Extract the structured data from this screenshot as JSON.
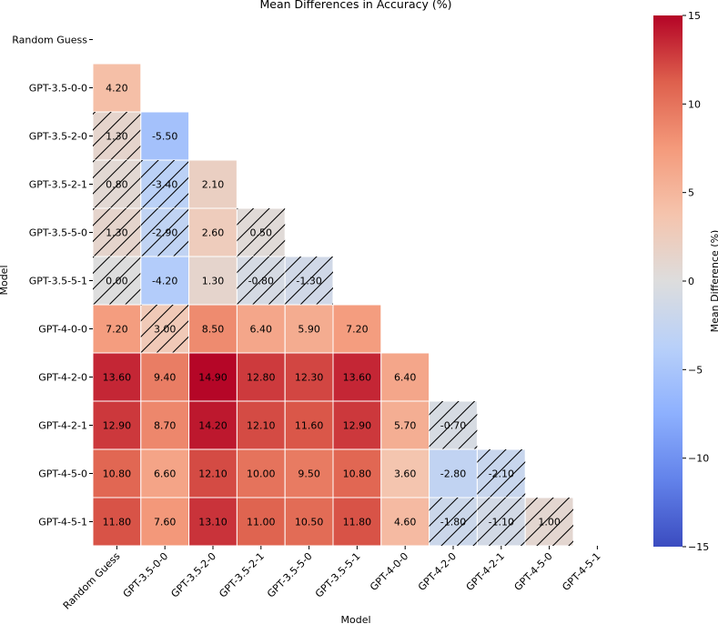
{
  "chart_data": {
    "type": "heatmap",
    "title": "Mean Differences in Accuracy (%)",
    "xlabel": "Model",
    "ylabel": "Model",
    "models": [
      "Random Guess",
      "GPT-3.5-0-0",
      "GPT-3.5-2-0",
      "GPT-3.5-2-1",
      "GPT-3.5-5-0",
      "GPT-3.5-5-1",
      "GPT-4-0-0",
      "GPT-4-2-0",
      "GPT-4-2-1",
      "GPT-4-5-0",
      "GPT-4-5-1"
    ],
    "values": [
      [],
      [
        4.2
      ],
      [
        1.3,
        -5.5
      ],
      [
        0.8,
        -3.4,
        2.1
      ],
      [
        1.3,
        -2.9,
        2.6,
        0.5
      ],
      [
        0.0,
        -4.2,
        1.3,
        -0.8,
        -1.3
      ],
      [
        7.2,
        3.0,
        8.5,
        6.4,
        5.9,
        7.2
      ],
      [
        13.6,
        9.4,
        14.9,
        12.8,
        12.3,
        13.6,
        6.4
      ],
      [
        12.9,
        8.7,
        14.2,
        12.1,
        11.6,
        12.9,
        5.7,
        -0.7
      ],
      [
        10.8,
        6.6,
        12.1,
        10.0,
        9.5,
        10.8,
        3.6,
        -2.8,
        -2.1
      ],
      [
        11.8,
        7.6,
        13.1,
        11.0,
        10.5,
        11.8,
        4.6,
        -1.8,
        -1.1,
        1.0
      ]
    ],
    "labels": [
      [],
      [
        "4.20"
      ],
      [
        "1.30",
        "-5.50"
      ],
      [
        "0.80",
        "-3.40",
        "2.10"
      ],
      [
        "1.30",
        "-2.90",
        "2.60",
        "0.50"
      ],
      [
        "0.00",
        "-4.20",
        "1.30",
        "-0.80",
        "-1.30"
      ],
      [
        "7.20",
        "3.00",
        "8.50",
        "6.40",
        "5.90",
        "7.20"
      ],
      [
        "13.60",
        "9.40",
        "14.90",
        "12.80",
        "12.30",
        "13.60",
        "6.40"
      ],
      [
        "12.90",
        "8.70",
        "14.20",
        "12.10",
        "11.60",
        "12.90",
        "5.70",
        "-0.70"
      ],
      [
        "10.80",
        "6.60",
        "12.10",
        "10.00",
        "9.50",
        "10.80",
        "3.60",
        "-2.80",
        "-2.10"
      ],
      [
        "11.80",
        "7.60",
        "13.10",
        "11.00",
        "10.50",
        "11.80",
        "4.60",
        "-1.80",
        "-1.10",
        "1.00"
      ]
    ],
    "hatched": [
      [],
      [
        false
      ],
      [
        true,
        false
      ],
      [
        true,
        true,
        false
      ],
      [
        true,
        true,
        false,
        true
      ],
      [
        true,
        false,
        false,
        true,
        true
      ],
      [
        false,
        true,
        false,
        false,
        false,
        false
      ],
      [
        false,
        false,
        false,
        false,
        false,
        false,
        false
      ],
      [
        false,
        false,
        false,
        false,
        false,
        false,
        false,
        true
      ],
      [
        false,
        false,
        false,
        false,
        false,
        false,
        false,
        false,
        true
      ],
      [
        false,
        false,
        false,
        false,
        false,
        false,
        false,
        true,
        true,
        true
      ]
    ],
    "colormap": "coolwarm",
    "vlim": [
      -15,
      15
    ],
    "colorbar": {
      "label": "Mean Difference (%)",
      "ticks": [
        -15,
        -10,
        -5,
        0,
        5,
        10,
        15
      ],
      "tick_labels": [
        "−15",
        "−10",
        "−5",
        "0",
        "5",
        "10",
        "15"
      ]
    },
    "mask": "upper-triangle",
    "grid": false
  }
}
